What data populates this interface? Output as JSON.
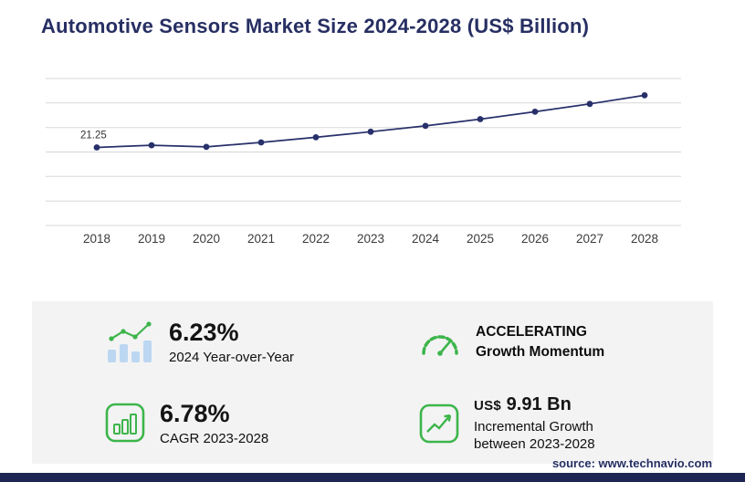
{
  "header": {
    "title": "Automotive Sensors Market Size 2024-2028 (US$ Billion)"
  },
  "chart_data": {
    "type": "line",
    "title": "Automotive Sensors Market Size 2024-2028 (US$ Billion)",
    "x": [
      2018,
      2019,
      2020,
      2021,
      2022,
      2023,
      2024,
      2025,
      2026,
      2027,
      2028
    ],
    "series": [
      {
        "name": "Automotive sensors market size (US$ Billion)",
        "values": [
          21.25,
          21.85,
          21.4,
          22.6,
          24.0,
          25.52,
          27.11,
          28.95,
          30.95,
          33.1,
          35.43
        ]
      }
    ],
    "point_labels": {
      "2018": "21.25"
    },
    "ylim": [
      0,
      40
    ],
    "grid": "horizontal",
    "legend": "none",
    "line_color": "#27306a"
  },
  "stats": {
    "yoy": {
      "value": "6.23%",
      "label": "2024 Year-over-Year"
    },
    "momentum": {
      "line1": "ACCELERATING",
      "line2": "Growth Momentum"
    },
    "cagr": {
      "value": "6.78%",
      "label": "CAGR 2023-2028"
    },
    "incremental": {
      "prefix": "US$",
      "value": "9.91 Bn",
      "label": "Incremental Growth between 2023-2028"
    }
  },
  "footer": {
    "source": "source: www.technavio.com"
  },
  "colors": {
    "navy": "#272f63",
    "line_navy": "#27306a",
    "green": "#3cb54a",
    "bar_light_blue": "#bcd7f2",
    "panel_bg": "#f3f3f4",
    "gridline": "#d7d7d7",
    "footer_bar": "#1c2553"
  },
  "icons": {
    "yoy": "bar-line-growth-icon",
    "momentum": "speedometer-icon",
    "cagr": "bar-chart-frame-icon",
    "incremental": "line-growth-frame-icon"
  }
}
